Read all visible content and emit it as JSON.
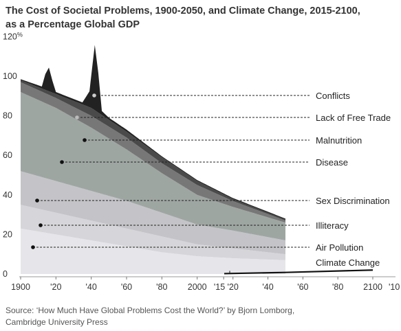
{
  "title_line1": "The Cost of Societal Problems, 1900-2050, and Climate Change, 2015-2100,",
  "title_line2": "as a  Percentage Global GDP",
  "source_line1": "Source: ‘How Much Have Global Problems Cost the World?’ by Bjorn Lomborg,",
  "source_line2": "Cambridge University Press",
  "chart_data": [
    {
      "type": "area",
      "stacked": true,
      "x_range": [
        1900,
        2050
      ],
      "ylim": [
        0,
        120
      ],
      "y_ticks": [
        "120%",
        "100",
        "80",
        "60",
        "40",
        "20",
        "0"
      ],
      "y_tick_values": [
        120,
        100,
        80,
        60,
        40,
        20,
        0
      ],
      "x_tick_values": [
        1900,
        1920,
        1940,
        1960,
        1980,
        2000,
        2015
      ],
      "x_tick_labels": [
        "1900",
        "'20",
        "'40",
        "'60",
        "'80",
        "2000",
        "'15"
      ],
      "grid": false,
      "series": [
        {
          "name": "Air Pollution",
          "color": "#e6e6ea",
          "x": [
            1900,
            1920,
            1940,
            1960,
            1980,
            2000,
            2020,
            2050
          ],
          "values": [
            23,
            20,
            17,
            14,
            11,
            9,
            8,
            7
          ]
        },
        {
          "name": "Illiteracy",
          "color": "#d6d6da",
          "x": [
            1900,
            1920,
            1940,
            1960,
            1980,
            2000,
            2020,
            2050
          ],
          "values": [
            12,
            11,
            10,
            9,
            8,
            6,
            5,
            3
          ]
        },
        {
          "name": "Sex Discrimination",
          "color": "#c4c4c8",
          "x": [
            1900,
            1920,
            1940,
            1960,
            1980,
            2000,
            2020,
            2050
          ],
          "values": [
            17,
            16,
            15,
            14,
            12,
            10,
            9,
            7
          ]
        },
        {
          "name": "Disease",
          "color": "#9ea6a2",
          "x": [
            1900,
            1920,
            1940,
            1960,
            1980,
            2000,
            2020,
            2050
          ],
          "values": [
            40,
            37,
            32,
            26,
            20,
            15,
            12,
            9
          ]
        },
        {
          "name": "Malnutrition",
          "color": "#777777",
          "x": [
            1900,
            1920,
            1940,
            1960,
            1980,
            2000,
            2020,
            2050
          ],
          "values": [
            5,
            5,
            6,
            6,
            5,
            5,
            3,
            1
          ]
        },
        {
          "name": "Lack of Free Trade",
          "color": "#4a4a4a",
          "x": [
            1900,
            1920,
            1940,
            1960,
            1980,
            2000,
            2020,
            2050
          ],
          "values": [
            1,
            2,
            4,
            3,
            3,
            2,
            1,
            0.5
          ]
        },
        {
          "name": "Conflicts",
          "color": "#222222",
          "x": [
            1900,
            1912,
            1914,
            1916,
            1918,
            1920,
            1925,
            1935,
            1939,
            1942,
            1944,
            1946,
            1950,
            1960,
            1980,
            2000,
            2020,
            2050
          ],
          "values": [
            0.5,
            1,
            8,
            12,
            6,
            1,
            1,
            1,
            8,
            33,
            20,
            2,
            1,
            1,
            0.5,
            0.5,
            0.5,
            0.5
          ]
        }
      ],
      "labels": [
        "Conflicts",
        "Lack of Free Trade",
        "Malnutrition",
        "Disease",
        "Sex Discrimination",
        "Illiteracy",
        "Air Pollution",
        "Climate Change"
      ]
    },
    {
      "type": "line",
      "x_range": [
        2015,
        2100
      ],
      "x_tick_values": [
        2020,
        2040,
        2060,
        2080,
        2100
      ],
      "x_tick_labels": [
        "'20",
        "'40",
        "'60",
        "'80",
        "2100"
      ],
      "x_end_label": "'10",
      "series": [
        {
          "name": "Climate Change",
          "color": "#111111",
          "x": [
            2015,
            2050,
            2100
          ],
          "values": [
            0.2,
            0.8,
            2
          ]
        }
      ]
    }
  ]
}
